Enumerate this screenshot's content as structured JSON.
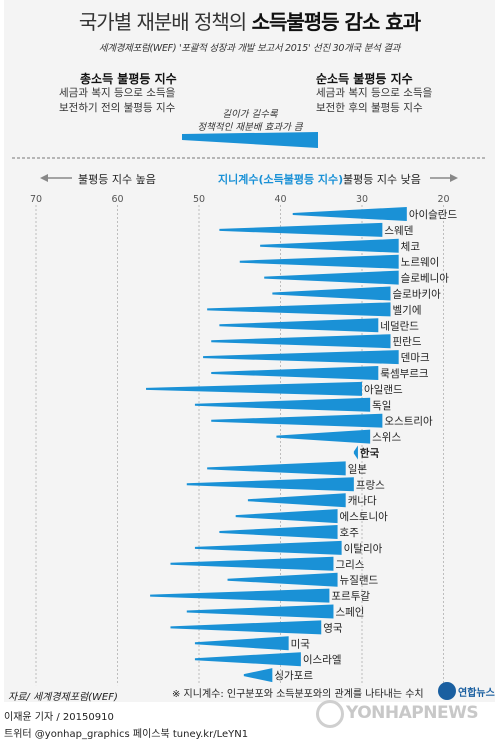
{
  "title_part1": "국가별 재분배 정책의",
  "title_part2": "소득불평등 감소 효과",
  "subtitle": "세계경제포럼(WEF) '포괄적 성장과 개발 보고서 2015' 선진 30개국 분석 결과",
  "legend": {
    "left_head": "총소득 불평등 지수",
    "left_body": [
      "세금과 복지 등으로 소득을",
      "보전하기 전의 불평등 지수"
    ],
    "right_head": "순소득 불평등 지수",
    "right_body": [
      "세금과 복지 등으로 소득을",
      "보전한 후의 불평등 지수"
    ],
    "mid_note": [
      "길이가 길수록",
      "정책적인 재분배 효과가 큼"
    ]
  },
  "axis_header": {
    "left": "불평등 지수 높음",
    "center": "지니계수(소득불평등 지수)",
    "right": "불평등 지수 낮음"
  },
  "footnote": "※ 지니계수: 인구분포와 소득분포와의 관계를 나타내는 수치",
  "source": "자료/ 세계경제포럼(WEF)",
  "credit": "이재윤 기자 / 20150910",
  "social": "트위터 @yonhap_graphics  페이스북 tuney.kr/LeYN1",
  "logo_text": "연합뉴스",
  "watermark": "YONHAPNEWS",
  "colors": {
    "bar": "#1a91d6",
    "korea_bar": "#1a91d6",
    "highlight_text": "#1a91d6",
    "background": "#f4f4f4"
  },
  "chart_data": {
    "type": "bar",
    "subtype": "range-wedge",
    "x_axis_reversed": true,
    "xlim": [
      75,
      15
    ],
    "xticks": [
      70,
      60,
      50,
      40,
      30,
      20
    ],
    "grid": true,
    "categories": [
      "아이슬란드",
      "스웨덴",
      "체코",
      "노르웨이",
      "슬로베니아",
      "슬로바키아",
      "벨기에",
      "네덜란드",
      "핀란드",
      "덴마크",
      "룩셈부르크",
      "아일랜드",
      "독일",
      "오스트리아",
      "스위스",
      "한국",
      "일본",
      "프랑스",
      "캐나다",
      "에스토니아",
      "호주",
      "이탈리아",
      "그리스",
      "뉴질랜드",
      "포르투갈",
      "스페인",
      "영국",
      "미국",
      "이스라엘",
      "싱가포르"
    ],
    "series": [
      {
        "name": "총소득 불평등 지수",
        "values": [
          38.5,
          47.5,
          42.5,
          45.0,
          42.0,
          41.0,
          49.0,
          47.5,
          48.5,
          49.5,
          48.5,
          56.5,
          50.5,
          48.5,
          40.5,
          31.0,
          49.0,
          51.5,
          44.0,
          45.5,
          47.5,
          50.5,
          53.5,
          46.5,
          56.0,
          51.5,
          53.5,
          50.5,
          50.5,
          44.5
        ]
      },
      {
        "name": "순소득 불평등 지수",
        "values": [
          24.5,
          27.5,
          25.5,
          25.5,
          25.5,
          26.5,
          26.5,
          28.0,
          26.5,
          25.5,
          28.0,
          30.0,
          29.0,
          27.5,
          29.0,
          30.5,
          32.0,
          31.0,
          32.0,
          33.0,
          33.0,
          32.5,
          33.5,
          33.0,
          34.0,
          33.5,
          35.0,
          39.0,
          37.5,
          41.0
        ]
      }
    ],
    "highlight": "한국"
  }
}
